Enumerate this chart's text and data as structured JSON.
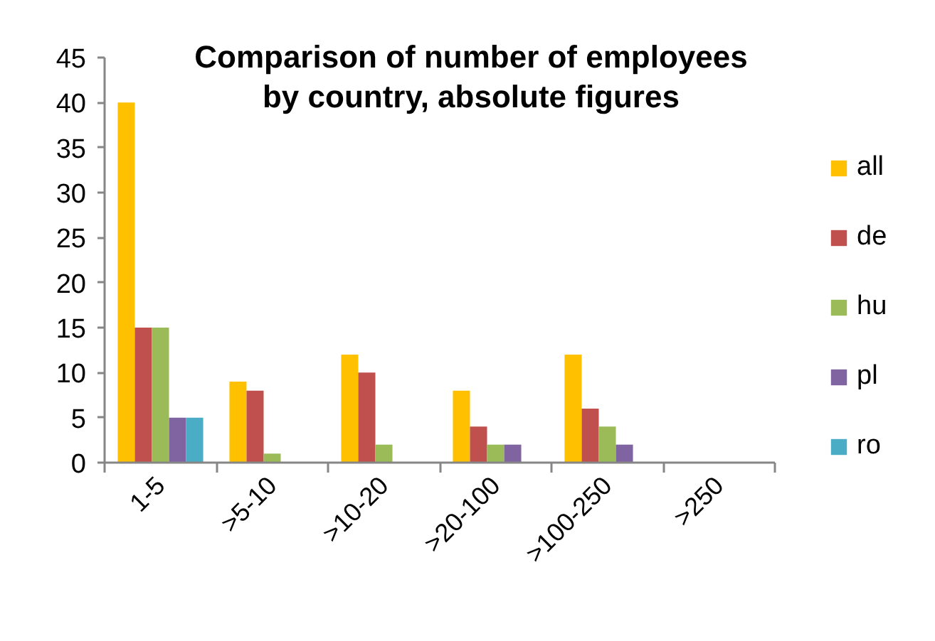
{
  "chart_data": {
    "type": "bar",
    "title": "Comparison of number of employees\nby country, absolute figures",
    "categories": [
      "1-5",
      ">5-10",
      ">10-20",
      ">20-100",
      ">100-250",
      ">250"
    ],
    "series": [
      {
        "name": "all",
        "color": "#ffc000",
        "values": [
          40,
          9,
          12,
          8,
          12,
          0
        ]
      },
      {
        "name": "de",
        "color": "#c0504d",
        "values": [
          15,
          8,
          10,
          4,
          6,
          0
        ]
      },
      {
        "name": "hu",
        "color": "#9bbb59",
        "values": [
          15,
          1,
          2,
          2,
          4,
          0
        ]
      },
      {
        "name": "pl",
        "color": "#8064a2",
        "values": [
          5,
          0,
          0,
          2,
          2,
          0
        ]
      },
      {
        "name": "ro",
        "color": "#4bacc6",
        "values": [
          5,
          0,
          0,
          0,
          0,
          0
        ]
      }
    ],
    "ylim": [
      0,
      45
    ],
    "yticks": [
      0,
      5,
      10,
      15,
      20,
      25,
      30,
      35,
      40,
      45
    ],
    "legend": "right"
  }
}
